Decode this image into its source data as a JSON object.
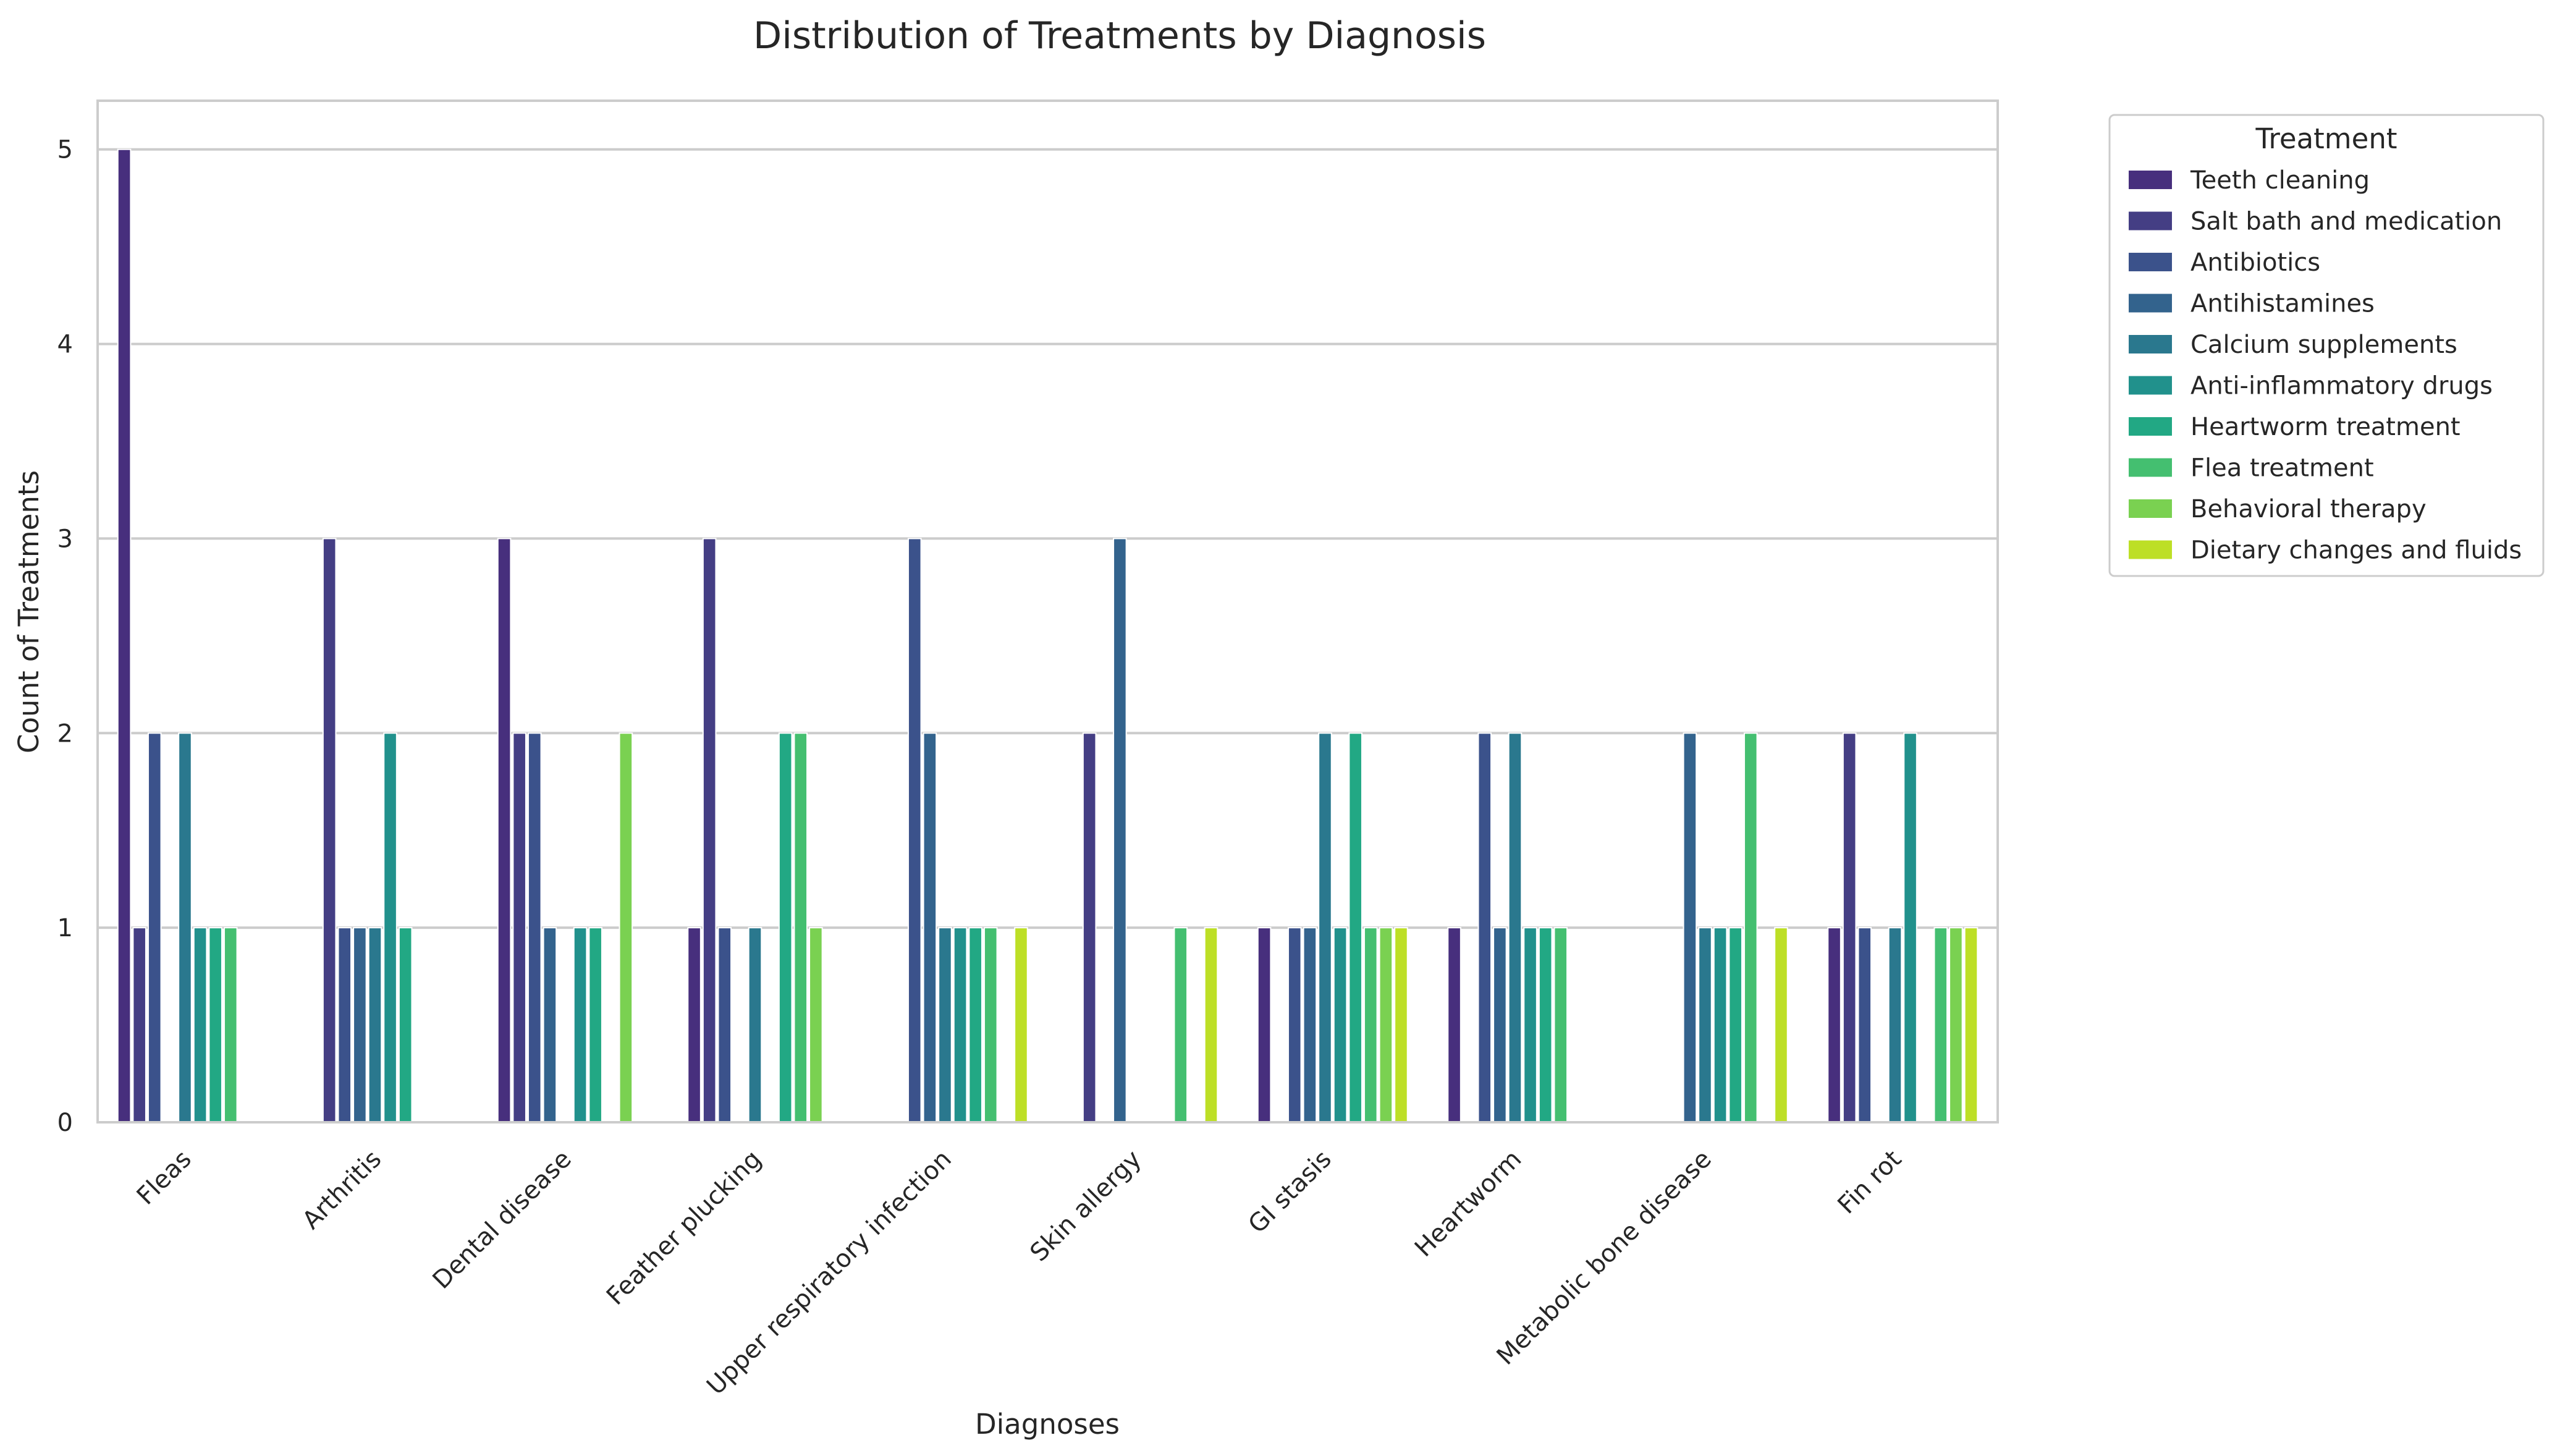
{
  "chart_data": {
    "type": "bar",
    "title": "Distribution of Treatments by Diagnosis",
    "xlabel": "Diagnoses",
    "ylabel": "Count of Treatments",
    "ylim": [
      0,
      5.25
    ],
    "yticks": [
      0,
      1,
      2,
      3,
      4,
      5
    ],
    "grid": true,
    "legend_title": "Treatment",
    "legend_position": "outside right, top",
    "categories": [
      "Fleas",
      "Arthritis",
      "Dental disease",
      "Feather plucking",
      "Upper respiratory infection",
      "Skin allergy",
      "GI stasis",
      "Heartworm",
      "Metabolic bone disease",
      "Fin rot"
    ],
    "series": [
      {
        "name": "Teeth cleaning",
        "color": "#472f7d",
        "values": [
          5,
          0,
          3,
          1,
          0,
          0,
          1,
          1,
          0,
          1
        ]
      },
      {
        "name": "Salt bath and medication",
        "color": "#443e84",
        "values": [
          1,
          3,
          2,
          3,
          0,
          2,
          0,
          0,
          0,
          2
        ]
      },
      {
        "name": "Antibiotics",
        "color": "#3b528b",
        "values": [
          2,
          1,
          2,
          1,
          3,
          0,
          1,
          2,
          0,
          1
        ]
      },
      {
        "name": "Antihistamines",
        "color": "#33638d",
        "values": [
          0,
          1,
          1,
          0,
          2,
          3,
          1,
          1,
          2,
          0
        ]
      },
      {
        "name": "Calcium supplements",
        "color": "#2a788e",
        "values": [
          2,
          1,
          0,
          1,
          1,
          0,
          2,
          2,
          1,
          1
        ]
      },
      {
        "name": "Anti-inflammatory drugs",
        "color": "#21918c",
        "values": [
          1,
          2,
          1,
          0,
          1,
          0,
          1,
          1,
          1,
          2
        ]
      },
      {
        "name": "Heartworm treatment",
        "color": "#22a884",
        "values": [
          1,
          1,
          1,
          2,
          1,
          0,
          2,
          1,
          1,
          0
        ]
      },
      {
        "name": "Flea treatment",
        "color": "#44bf70",
        "values": [
          1,
          0,
          0,
          2,
          1,
          1,
          1,
          1,
          2,
          1
        ]
      },
      {
        "name": "Behavioral therapy",
        "color": "#7ad151",
        "values": [
          0,
          0,
          2,
          1,
          0,
          0,
          1,
          0,
          0,
          1
        ]
      },
      {
        "name": "Dietary changes and fluids",
        "color": "#bddf26",
        "values": [
          0,
          0,
          0,
          0,
          1,
          1,
          1,
          0,
          1,
          1
        ]
      }
    ]
  }
}
